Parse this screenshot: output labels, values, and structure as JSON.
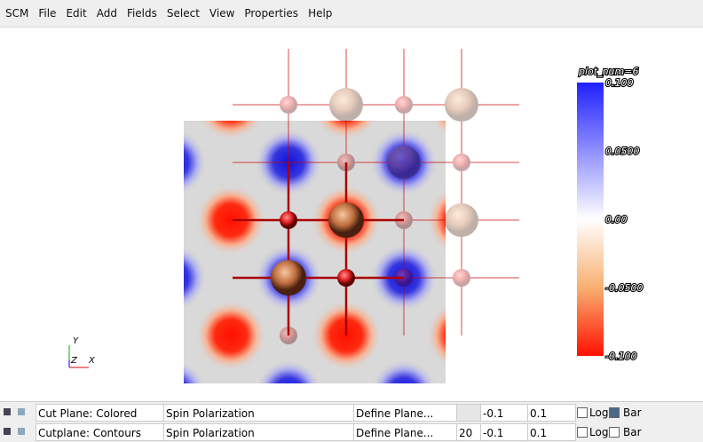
{
  "menu": [
    "SCM",
    "File",
    "Edit",
    "Add",
    "Fields",
    "Select",
    "View",
    "Properties",
    "Help"
  ],
  "colorbar": {
    "title": "plot_num=6",
    "labels": [
      "0.100",
      "0.0500",
      "0.00",
      "-0.0500",
      "-0.100"
    ]
  },
  "axes": {
    "y": "Y",
    "z": "Z",
    "x": "X"
  },
  "rows": [
    {
      "name": "Cut Plane: Colored",
      "field": "Spin Polarization",
      "plane": "Define Plane...",
      "min": "-0.1",
      "max": "0.1",
      "log": "Log",
      "bar": "Bar"
    },
    {
      "name": "Cutplane: Contours",
      "field": "Spin Polarization",
      "plane": "Define Plane...",
      "count": "20",
      "min": "-0.1",
      "max": "0.1",
      "log": "Log",
      "bar": "Bar"
    }
  ]
}
